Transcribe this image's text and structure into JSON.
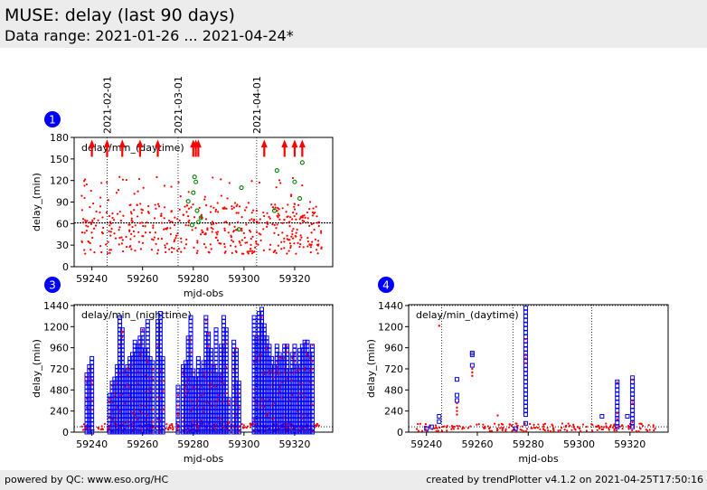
{
  "header": {
    "title": "MUSE: delay (last 90 days)",
    "subtitle": "Data range: 2021-01-26 ... 2021-04-24*"
  },
  "footer": {
    "left": "powered by QC: www.eso.org/HC",
    "right": "created by trendPlotter v4.1.2 on 2021-04-25T17:50:16"
  },
  "colors": {
    "points_red": "#ff0000",
    "squares_blue": "#0000ff",
    "circles_green": "#008000",
    "badge_blue": "#0000ff",
    "header_bg": "#ececec"
  },
  "chart_data": [
    {
      "badge": "1",
      "type": "scatter",
      "title": "delay/min_(daytime)",
      "xlabel": "mjd-obs",
      "ylabel": "delay_(min)",
      "xlim": [
        59233,
        59335
      ],
      "ylim": [
        0,
        180
      ],
      "xticks": [
        59240,
        59260,
        59280,
        59300,
        59320
      ],
      "yticks": [
        0,
        30,
        60,
        90,
        120,
        150,
        180
      ],
      "reference_line": 61,
      "date_markers": [
        {
          "label": "2021-02-01",
          "x": 59246
        },
        {
          "label": "2021-03-01",
          "x": 59274
        },
        {
          "label": "2021-04-01",
          "x": 59305
        }
      ],
      "out_of_range_arrows": [
        59240,
        59246,
        59252,
        59259,
        59266,
        59280,
        59281,
        59282,
        59308,
        59316,
        59320,
        59323
      ],
      "green_points": [
        {
          "x": 59280.5,
          "y": 125
        },
        {
          "x": 59281,
          "y": 118
        },
        {
          "x": 59280,
          "y": 103
        },
        {
          "x": 59278,
          "y": 91
        },
        {
          "x": 59281.5,
          "y": 78
        },
        {
          "x": 59283,
          "y": 68
        },
        {
          "x": 59279.5,
          "y": 58
        },
        {
          "x": 59282,
          "y": 62
        },
        {
          "x": 59298,
          "y": 52
        },
        {
          "x": 59299,
          "y": 110
        },
        {
          "x": 59313,
          "y": 134
        },
        {
          "x": 59320,
          "y": 118
        },
        {
          "x": 59322,
          "y": 95
        },
        {
          "x": 59323,
          "y": 145
        },
        {
          "x": 59312,
          "y": 78
        }
      ],
      "red_points_description": "dense red points between 59236 and 59331, mostly 20-125 min",
      "red_points_clusters": [
        {
          "from": 59236,
          "to": 59331,
          "min": 18,
          "max": 125
        }
      ]
    },
    {
      "badge": "3",
      "type": "scatter",
      "title": "delay/min_(nighttime)",
      "xlabel": "mjd-obs",
      "ylabel": "delay_(min)",
      "xlim": [
        59233,
        59335
      ],
      "ylim": [
        0,
        1450
      ],
      "xticks": [
        59240,
        59260,
        59280,
        59300,
        59320
      ],
      "yticks": [
        0,
        240,
        480,
        720,
        960,
        1200,
        1440
      ],
      "reference_lines": [
        61,
        1440
      ],
      "date_markers": [
        59246,
        59274,
        59305
      ],
      "blue_columns": [
        {
          "x": 59238,
          "max": 660
        },
        {
          "x": 59239,
          "max": 760
        },
        {
          "x": 59240,
          "max": 880
        },
        {
          "x": 59247,
          "max": 420
        },
        {
          "x": 59248,
          "max": 560
        },
        {
          "x": 59249,
          "max": 640
        },
        {
          "x": 59250,
          "max": 760
        },
        {
          "x": 59251,
          "max": 1330
        },
        {
          "x": 59252,
          "max": 1180
        },
        {
          "x": 59253,
          "max": 700
        },
        {
          "x": 59254,
          "max": 780
        },
        {
          "x": 59255,
          "max": 880
        },
        {
          "x": 59256,
          "max": 920
        },
        {
          "x": 59257,
          "max": 1040
        },
        {
          "x": 59258,
          "max": 980
        },
        {
          "x": 59259,
          "max": 1100
        },
        {
          "x": 59260,
          "max": 1180
        },
        {
          "x": 59261,
          "max": 940
        },
        {
          "x": 59262,
          "max": 1280
        },
        {
          "x": 59263,
          "max": 860
        },
        {
          "x": 59264,
          "max": 820
        },
        {
          "x": 59266,
          "max": 1290
        },
        {
          "x": 59267,
          "max": 1380
        },
        {
          "x": 59268,
          "max": 880
        },
        {
          "x": 59274,
          "max": 540
        },
        {
          "x": 59276,
          "max": 760
        },
        {
          "x": 59277,
          "max": 820
        },
        {
          "x": 59278,
          "max": 1080
        },
        {
          "x": 59279,
          "max": 1310
        },
        {
          "x": 59280,
          "max": 700
        },
        {
          "x": 59281,
          "max": 640
        },
        {
          "x": 59282,
          "max": 860
        },
        {
          "x": 59283,
          "max": 720
        },
        {
          "x": 59284,
          "max": 800
        },
        {
          "x": 59285,
          "max": 1330
        },
        {
          "x": 59286,
          "max": 1150
        },
        {
          "x": 59287,
          "max": 960
        },
        {
          "x": 59288,
          "max": 760
        },
        {
          "x": 59289,
          "max": 1210
        },
        {
          "x": 59290,
          "max": 660
        },
        {
          "x": 59291,
          "max": 1000
        },
        {
          "x": 59292,
          "max": 1340
        },
        {
          "x": 59293,
          "max": 1210
        },
        {
          "x": 59294,
          "max": 400
        },
        {
          "x": 59296,
          "max": 1030
        },
        {
          "x": 59297,
          "max": 960
        },
        {
          "x": 59298,
          "max": 560
        },
        {
          "x": 59304,
          "max": 1310
        },
        {
          "x": 59305,
          "max": 1100
        },
        {
          "x": 59306,
          "max": 1380
        },
        {
          "x": 59307,
          "max": 1420
        },
        {
          "x": 59308,
          "max": 1250
        },
        {
          "x": 59309,
          "max": 1100
        },
        {
          "x": 59310,
          "max": 980
        },
        {
          "x": 59311,
          "max": 880
        },
        {
          "x": 59312,
          "max": 780
        },
        {
          "x": 59313,
          "max": 1000
        },
        {
          "x": 59314,
          "max": 920
        },
        {
          "x": 59315,
          "max": 860
        },
        {
          "x": 59316,
          "max": 1000
        },
        {
          "x": 59317,
          "max": 980
        },
        {
          "x": 59318,
          "max": 700
        },
        {
          "x": 59319,
          "max": 930
        },
        {
          "x": 59320,
          "max": 1010
        },
        {
          "x": 59321,
          "max": 760
        },
        {
          "x": 59322,
          "max": 950
        },
        {
          "x": 59323,
          "max": 1000
        },
        {
          "x": 59324,
          "max": 1050
        },
        {
          "x": 59325,
          "max": 1040
        },
        {
          "x": 59326,
          "max": 900
        },
        {
          "x": 59327,
          "max": 1000
        }
      ]
    },
    {
      "badge": "4",
      "type": "scatter",
      "title": "delay/min_(daytime)",
      "xlabel": "mjd-obs",
      "ylabel": "delay_(min)",
      "xlim": [
        59233,
        59335
      ],
      "ylim": [
        0,
        1450
      ],
      "xticks": [
        59240,
        59260,
        59280,
        59300,
        59320
      ],
      "yticks": [
        0,
        240,
        480,
        720,
        960,
        1200,
        1440
      ],
      "reference_lines": [
        61,
        1440
      ],
      "date_markers": [
        59246,
        59274,
        59305
      ],
      "blue_squares": [
        {
          "x": 59240,
          "y": 40
        },
        {
          "x": 59242,
          "y": 60
        },
        {
          "x": 59245,
          "y": 120
        },
        {
          "x": 59245,
          "y": 180
        },
        {
          "x": 59252,
          "y": 360
        },
        {
          "x": 59252,
          "y": 420
        },
        {
          "x": 59252,
          "y": 600
        },
        {
          "x": 59258,
          "y": 760
        },
        {
          "x": 59258,
          "y": 900
        },
        {
          "x": 59258,
          "y": 880
        },
        {
          "x": 59275,
          "y": 40
        },
        {
          "x": 59279,
          "y": 100
        },
        {
          "x": 59309,
          "y": 180
        },
        {
          "x": 59319,
          "y": 180
        }
      ],
      "blue_columns": [
        {
          "x": 59279,
          "min": 200,
          "max": 1440
        },
        {
          "x": 59315,
          "min": 60,
          "max": 600
        },
        {
          "x": 59321,
          "min": 60,
          "max": 620
        }
      ],
      "red_points": [
        {
          "x": 59245,
          "y": 1210
        },
        {
          "x": 59252,
          "y": 330
        },
        {
          "x": 59252,
          "y": 280
        },
        {
          "x": 59252,
          "y": 240
        },
        {
          "x": 59252,
          "y": 200
        },
        {
          "x": 59258,
          "y": 720
        },
        {
          "x": 59258,
          "y": 680
        },
        {
          "x": 59258,
          "y": 640
        },
        {
          "x": 59268,
          "y": 190
        }
      ]
    }
  ]
}
